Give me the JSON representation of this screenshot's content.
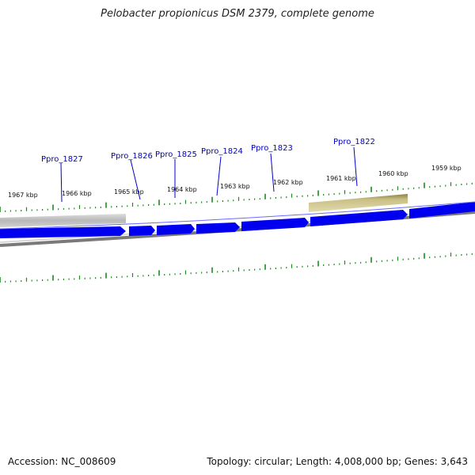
{
  "title": "Pelobacter propionicus DSM 2379, complete genome",
  "accession": "Accession: NC_008609",
  "topology": "Topology: circular; Length: 4,008,000 bp; Genes: 3,643",
  "scale_labels": [
    "1967 kbp",
    "1966 kbp",
    "1965 kbp",
    "1964 kbp",
    "1963 kbp",
    "1962 kbp",
    "1961 kbp",
    "1960 kbp",
    "1959 kbp"
  ],
  "gene_labels": [
    "Ppro_1827",
    "Ppro_1826",
    "Ppro_1825",
    "Ppro_1824",
    "Ppro_1823",
    "Ppro_1822"
  ],
  "colors": {
    "gene_blue": "#0000ee",
    "tick_green": "#1a8a1a",
    "label_blue": "#0000cc",
    "backbone_gray": "#808080",
    "region_gray": "#bbbbbb",
    "region_khaki": "#c4b97a"
  }
}
